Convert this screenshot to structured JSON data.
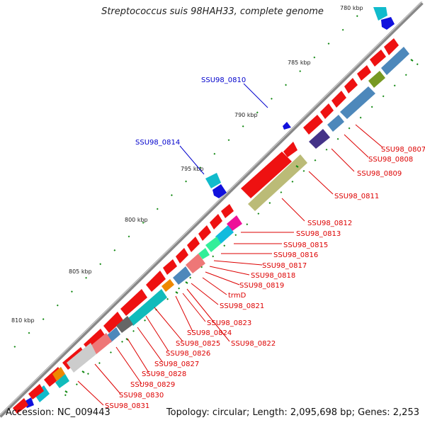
{
  "title": "Streptococcus suis 98HAH33, complete genome",
  "footer": {
    "accession": "Accession: NC_009443",
    "summary": "Topology: circular; Length: 2,095,698 bp; Genes: 2,253"
  },
  "ticks": [
    "780 kbp",
    "785 kbp",
    "790 kbp",
    "795 kbp",
    "800 kbp",
    "805 kbp",
    "810 kbp"
  ],
  "blue_labels": [
    "SSU98_0810",
    "SSU98_0814"
  ],
  "red_labels": [
    "SSU98_0807",
    "SSU98_0808",
    "SSU98_0809",
    "SSU98_0811",
    "SSU98_0812",
    "SSU98_0813",
    "SSU98_0815",
    "SSU98_0816",
    "SSU98_0817",
    "SSU98_0818",
    "SSU98_0819",
    "trmD",
    "SSU98_0821",
    "SSU98_0823",
    "SSU98_0824",
    "SSU98_0822",
    "SSU98_0825",
    "SSU98_0826",
    "SSU98_0827",
    "SSU98_0828",
    "SSU98_0829",
    "SSU98_0830",
    "SSU98_0831"
  ],
  "colors": {
    "cds": "#ee1111",
    "blue_gene": "#1111dd",
    "teal": "#11bbcc",
    "steel": "#4d88bb",
    "olive": "#bbbb77",
    "label_red": "#dd0000",
    "label_blue": "#0000cc",
    "green_tick": "#118811",
    "backbone": "#888888"
  }
}
